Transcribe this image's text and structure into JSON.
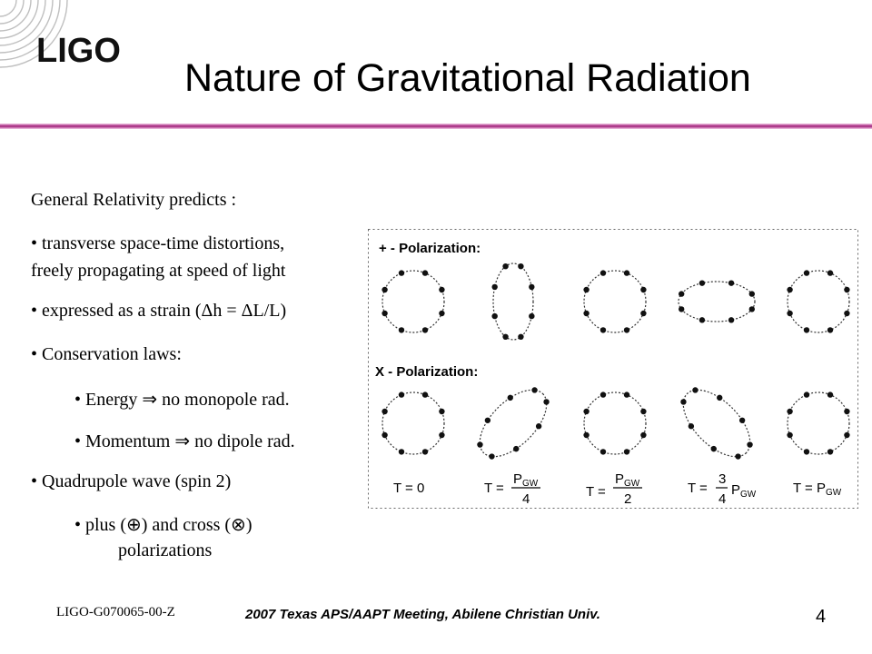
{
  "header": {
    "logo_text": "LIGO",
    "title": "Nature of Gravitational Radiation"
  },
  "content": {
    "intro": "General Relativity predicts :",
    "bullet1_line1": "• transverse space-time distortions,",
    "bullet1_line2": "freely propagating at speed of light",
    "bullet2": "• expressed as a strain (Δh = ΔL/L)",
    "bullet3": "• Conservation laws:",
    "sub_energy": "• Energy ⇒ no monopole rad.",
    "sub_momentum": "• Momentum ⇒ no dipole rad.",
    "bullet4": "• Quadrupole wave (spin 2)",
    "sub_plus_line1": "• plus (⊕) and cross (⊗)",
    "sub_plus_line2": "polarizations"
  },
  "figure": {
    "plus_label": "+ - Polarization:",
    "cross_label": "X - Polarization:",
    "times": [
      {
        "lhs": "T = 0"
      },
      {
        "lhs": "T =",
        "num": "P",
        "num_sub": "GW",
        "den": "4"
      },
      {
        "lhs": "T =",
        "num": "P",
        "num_sub": "GW",
        "den": "2"
      },
      {
        "lhs": "T =",
        "frac_num": "3",
        "frac_den": "4",
        "tail": "P",
        "tail_sub": "GW"
      },
      {
        "lhs": "T = P",
        "tail_sub": "GW"
      }
    ]
  },
  "footer": {
    "doc_id": "LIGO-G070065-00-Z",
    "event": "2007 Texas APS/AAPT Meeting, Abilene Christian Univ.",
    "page_number": "4"
  },
  "colors": {
    "rule": "#a0207a",
    "rule_fade": "#f3c9e6",
    "logo_rings": "#bfbfbf",
    "logo_text": "#111111"
  }
}
